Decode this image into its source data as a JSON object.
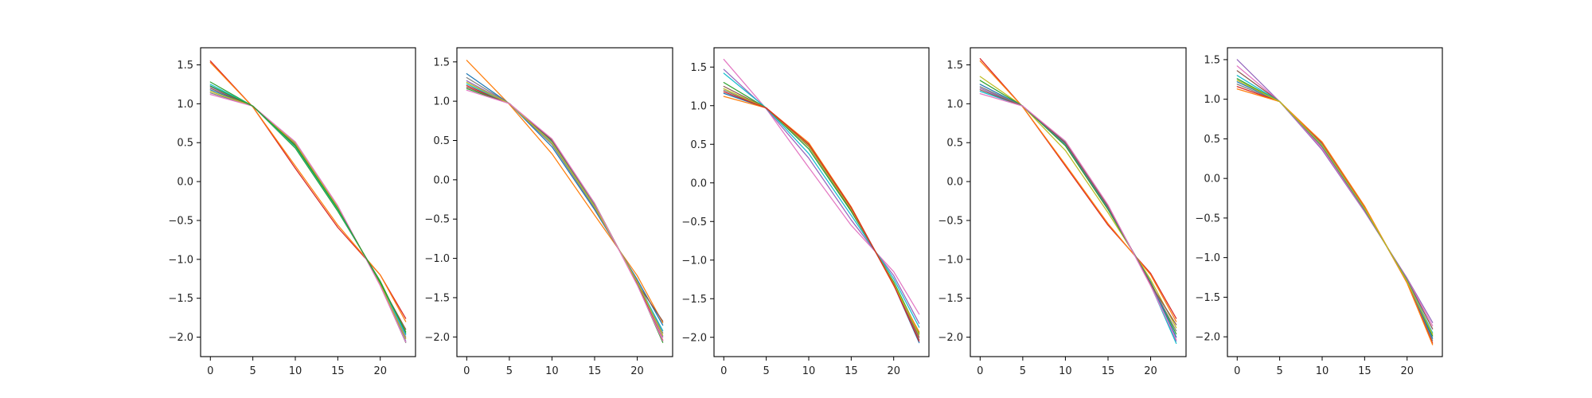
{
  "chart_data": [
    {
      "type": "line",
      "title": "",
      "xlabel": "",
      "ylabel": "",
      "xlim": [
        -1.15,
        24.15
      ],
      "ylim": [
        -2.25,
        1.72
      ],
      "xticks": [
        0,
        5,
        10,
        15,
        20
      ],
      "yticks": [
        1.5,
        1.0,
        0.5,
        0.0,
        -0.5,
        -1.0,
        -1.5,
        -2.0
      ],
      "x": [
        0,
        5,
        10,
        15,
        20,
        23
      ],
      "series": [
        {
          "color": "#d62728",
          "values": [
            1.55,
            0.96,
            0.17,
            -0.59,
            -1.2,
            -1.76
          ]
        },
        {
          "color": "#ff7f0e",
          "values": [
            1.53,
            0.96,
            0.2,
            -0.56,
            -1.2,
            -1.8
          ]
        },
        {
          "color": "#2ca02c",
          "values": [
            1.28,
            0.97,
            0.43,
            -0.38,
            -1.28,
            -1.95
          ]
        },
        {
          "color": "#9467bd",
          "values": [
            1.22,
            0.97,
            0.46,
            -0.35,
            -1.3,
            -2.0
          ]
        },
        {
          "color": "#1f77b4",
          "values": [
            1.18,
            0.97,
            0.48,
            -0.33,
            -1.32,
            -2.05
          ]
        },
        {
          "color": "#17becf",
          "values": [
            1.25,
            0.97,
            0.45,
            -0.36,
            -1.3,
            -1.97
          ]
        },
        {
          "color": "#7f7f7f",
          "values": [
            1.14,
            0.97,
            0.5,
            -0.32,
            -1.33,
            -2.07
          ]
        },
        {
          "color": "#8c564b",
          "values": [
            1.2,
            0.97,
            0.47,
            -0.34,
            -1.31,
            -1.9
          ]
        },
        {
          "color": "#bcbd22",
          "values": [
            1.16,
            0.97,
            0.49,
            -0.33,
            -1.32,
            -2.02
          ]
        },
        {
          "color": "#e377c2",
          "values": [
            1.12,
            0.97,
            0.51,
            -0.31,
            -1.34,
            -2.06
          ]
        },
        {
          "color": "#2ca02c",
          "values": [
            1.23,
            0.97,
            0.46,
            -0.35,
            -1.3,
            -1.93
          ]
        }
      ]
    },
    {
      "type": "line",
      "title": "",
      "xlabel": "",
      "ylabel": "",
      "xlim": [
        -1.15,
        24.15
      ],
      "ylim": [
        -2.25,
        1.68
      ],
      "xticks": [
        0,
        5,
        10,
        15,
        20
      ],
      "yticks": [
        1.5,
        1.0,
        0.5,
        0.0,
        -0.5,
        -1.0,
        -1.5,
        -2.0
      ],
      "x": [
        0,
        5,
        10,
        15,
        20,
        23
      ],
      "series": [
        {
          "color": "#ff7f0e",
          "values": [
            1.52,
            0.96,
            0.33,
            -0.45,
            -1.22,
            -1.82
          ]
        },
        {
          "color": "#1f77b4",
          "values": [
            1.35,
            0.97,
            0.42,
            -0.38,
            -1.27,
            -1.85
          ]
        },
        {
          "color": "#7f7f7f",
          "values": [
            1.3,
            0.97,
            0.45,
            -0.36,
            -1.29,
            -1.95
          ]
        },
        {
          "color": "#9467bd",
          "values": [
            1.26,
            0.97,
            0.47,
            -0.34,
            -1.3,
            -2.0
          ]
        },
        {
          "color": "#d62728",
          "values": [
            1.2,
            0.97,
            0.49,
            -0.32,
            -1.32,
            -2.04
          ]
        },
        {
          "color": "#2ca02c",
          "values": [
            1.16,
            0.97,
            0.51,
            -0.3,
            -1.33,
            -2.07
          ]
        },
        {
          "color": "#17becf",
          "values": [
            1.22,
            0.97,
            0.48,
            -0.33,
            -1.31,
            -1.92
          ]
        },
        {
          "color": "#8c564b",
          "values": [
            1.18,
            0.97,
            0.5,
            -0.31,
            -1.32,
            -1.8
          ]
        },
        {
          "color": "#bcbd22",
          "values": [
            1.24,
            0.97,
            0.47,
            -0.34,
            -1.3,
            -1.98
          ]
        },
        {
          "color": "#e377c2",
          "values": [
            1.14,
            0.97,
            0.52,
            -0.3,
            -1.34,
            -2.05
          ]
        }
      ]
    },
    {
      "type": "line",
      "title": "",
      "xlabel": "",
      "ylabel": "",
      "xlim": [
        -1.15,
        24.15
      ],
      "ylim": [
        -2.25,
        1.75
      ],
      "xticks": [
        0,
        5,
        10,
        15,
        20
      ],
      "yticks": [
        1.5,
        1.0,
        0.5,
        0.0,
        -0.5,
        -1.0,
        -1.5,
        -2.0
      ],
      "x": [
        0,
        5,
        10,
        15,
        20,
        23
      ],
      "series": [
        {
          "color": "#e377c2",
          "values": [
            1.6,
            0.96,
            0.2,
            -0.55,
            -1.15,
            -1.7
          ]
        },
        {
          "color": "#9467bd",
          "values": [
            1.47,
            0.96,
            0.32,
            -0.48,
            -1.2,
            -1.82
          ]
        },
        {
          "color": "#17becf",
          "values": [
            1.42,
            0.97,
            0.38,
            -0.42,
            -1.24,
            -1.87
          ]
        },
        {
          "color": "#2ca02c",
          "values": [
            1.3,
            0.97,
            0.44,
            -0.37,
            -1.28,
            -1.95
          ]
        },
        {
          "color": "#8c564b",
          "values": [
            1.25,
            0.97,
            0.47,
            -0.35,
            -1.3,
            -2.0
          ]
        },
        {
          "color": "#7f7f7f",
          "values": [
            1.2,
            0.97,
            0.49,
            -0.33,
            -1.31,
            -2.03
          ]
        },
        {
          "color": "#1f77b4",
          "values": [
            1.16,
            0.97,
            0.5,
            -0.32,
            -1.32,
            -2.07
          ]
        },
        {
          "color": "#ff7f0e",
          "values": [
            1.12,
            0.97,
            0.52,
            -0.31,
            -1.33,
            -1.93
          ]
        },
        {
          "color": "#bcbd22",
          "values": [
            1.22,
            0.97,
            0.48,
            -0.34,
            -1.3,
            -1.97
          ]
        },
        {
          "color": "#d62728",
          "values": [
            1.18,
            0.97,
            0.5,
            -0.32,
            -1.32,
            -2.05
          ]
        }
      ]
    },
    {
      "type": "line",
      "title": "",
      "xlabel": "",
      "ylabel": "",
      "xlim": [
        -1.15,
        24.15
      ],
      "ylim": [
        -2.25,
        1.72
      ],
      "xticks": [
        0,
        5,
        10,
        15,
        20
      ],
      "yticks": [
        1.5,
        1.0,
        0.5,
        0.0,
        -0.5,
        -1.0,
        -1.5,
        -2.0
      ],
      "x": [
        0,
        5,
        10,
        15,
        20,
        23
      ],
      "series": [
        {
          "color": "#d62728",
          "values": [
            1.58,
            0.96,
            0.2,
            -0.56,
            -1.18,
            -1.76
          ]
        },
        {
          "color": "#ff7f0e",
          "values": [
            1.55,
            0.96,
            0.22,
            -0.54,
            -1.2,
            -1.8
          ]
        },
        {
          "color": "#bcbd22",
          "values": [
            1.35,
            0.97,
            0.4,
            -0.4,
            -1.26,
            -1.88
          ]
        },
        {
          "color": "#2ca02c",
          "values": [
            1.3,
            0.97,
            0.46,
            -0.36,
            -1.29,
            -1.96
          ]
        },
        {
          "color": "#1f77b4",
          "values": [
            1.25,
            0.97,
            0.48,
            -0.34,
            -1.3,
            -2.0
          ]
        },
        {
          "color": "#9467bd",
          "values": [
            1.2,
            0.97,
            0.5,
            -0.32,
            -1.32,
            -2.05
          ]
        },
        {
          "color": "#17becf",
          "values": [
            1.16,
            0.97,
            0.51,
            -0.31,
            -1.33,
            -2.08
          ]
        },
        {
          "color": "#7f7f7f",
          "values": [
            1.22,
            0.97,
            0.49,
            -0.33,
            -1.31,
            -1.92
          ]
        },
        {
          "color": "#8c564b",
          "values": [
            1.18,
            0.97,
            0.5,
            -0.32,
            -1.32,
            -1.84
          ]
        },
        {
          "color": "#e377c2",
          "values": [
            1.13,
            0.97,
            0.52,
            -0.3,
            -1.34,
            -2.03
          ]
        }
      ]
    },
    {
      "type": "line",
      "title": "",
      "xlabel": "",
      "ylabel": "",
      "xlim": [
        -1.15,
        24.15
      ],
      "ylim": [
        -2.25,
        1.65
      ],
      "xticks": [
        0,
        5,
        10,
        15,
        20
      ],
      "yticks": [
        1.5,
        1.0,
        0.5,
        0.0,
        -0.5,
        -1.0,
        -1.5,
        -2.0
      ],
      "x": [
        0,
        5,
        10,
        15,
        20,
        23
      ],
      "series": [
        {
          "color": "#9467bd",
          "values": [
            1.5,
            0.97,
            0.36,
            -0.42,
            -1.26,
            -1.82
          ]
        },
        {
          "color": "#e377c2",
          "values": [
            1.42,
            0.97,
            0.38,
            -0.41,
            -1.27,
            -1.86
          ]
        },
        {
          "color": "#8c564b",
          "values": [
            1.36,
            0.97,
            0.4,
            -0.4,
            -1.28,
            -1.9
          ]
        },
        {
          "color": "#17becf",
          "values": [
            1.3,
            0.97,
            0.41,
            -0.39,
            -1.29,
            -1.95
          ]
        },
        {
          "color": "#2ca02c",
          "values": [
            1.26,
            0.97,
            0.42,
            -0.38,
            -1.3,
            -1.99
          ]
        },
        {
          "color": "#1f77b4",
          "values": [
            1.22,
            0.97,
            0.43,
            -0.37,
            -1.31,
            -2.02
          ]
        },
        {
          "color": "#7f7f7f",
          "values": [
            1.19,
            0.97,
            0.44,
            -0.36,
            -1.31,
            -2.05
          ]
        },
        {
          "color": "#d62728",
          "values": [
            1.16,
            0.97,
            0.45,
            -0.36,
            -1.32,
            -2.08
          ]
        },
        {
          "color": "#ff7f0e",
          "values": [
            1.13,
            0.97,
            0.46,
            -0.35,
            -1.32,
            -2.1
          ]
        },
        {
          "color": "#bcbd22",
          "values": [
            1.24,
            0.97,
            0.42,
            -0.38,
            -1.3,
            -1.97
          ]
        }
      ]
    }
  ]
}
